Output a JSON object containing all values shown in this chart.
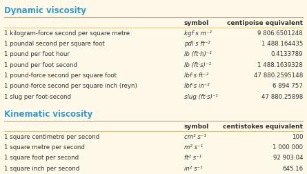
{
  "bg_color": "#fdf8e8",
  "header_color": "#3399cc",
  "text_color": "#333333",
  "bold_color": "#3399cc",
  "line_color": "#ccaa55",
  "dynamic_title": "Dynamic viscosity",
  "kinematic_title": "Kinematic viscosity",
  "col_headers_dynamic": [
    "symbol",
    "centipoise equivalent"
  ],
  "col_headers_kinematic": [
    "symbol",
    "centistokes equivalent"
  ],
  "dynamic_rows": [
    [
      "1 kilogram-force second per square metre",
      "kgf·s m⁻²",
      "9 806.6501248"
    ],
    [
      "1 poundal second per square foot",
      "pdl·s ft⁻²",
      "1 488.164435"
    ],
    [
      "1 pound per foot hour",
      "lb (ft·h)⁻¹",
      "0.4133789"
    ],
    [
      "1 pound per foot second",
      "lb (ft·s)⁻¹",
      "1 488.1639328"
    ],
    [
      "1 pound-force second per square foot",
      "lbf·s ft⁻²",
      "47 880.2595148"
    ],
    [
      "1 pound-force second per square inch (reyn)",
      "lbf·s in⁻²",
      "6 894 757"
    ],
    [
      "1 slug per foot-second",
      "slug (ft·s)⁻¹",
      "47 880.25898"
    ]
  ],
  "kinematic_rows": [
    [
      "1 square centimetre per second",
      "cm² s⁻¹",
      "100"
    ],
    [
      "1 square metre per second",
      "m² s⁻¹",
      "1 000 000"
    ],
    [
      "1 square foot per second",
      "ft² s⁻¹",
      "92 903.04"
    ],
    [
      "1 square inch per second",
      "in² s⁻¹",
      "645.16"
    ]
  ]
}
